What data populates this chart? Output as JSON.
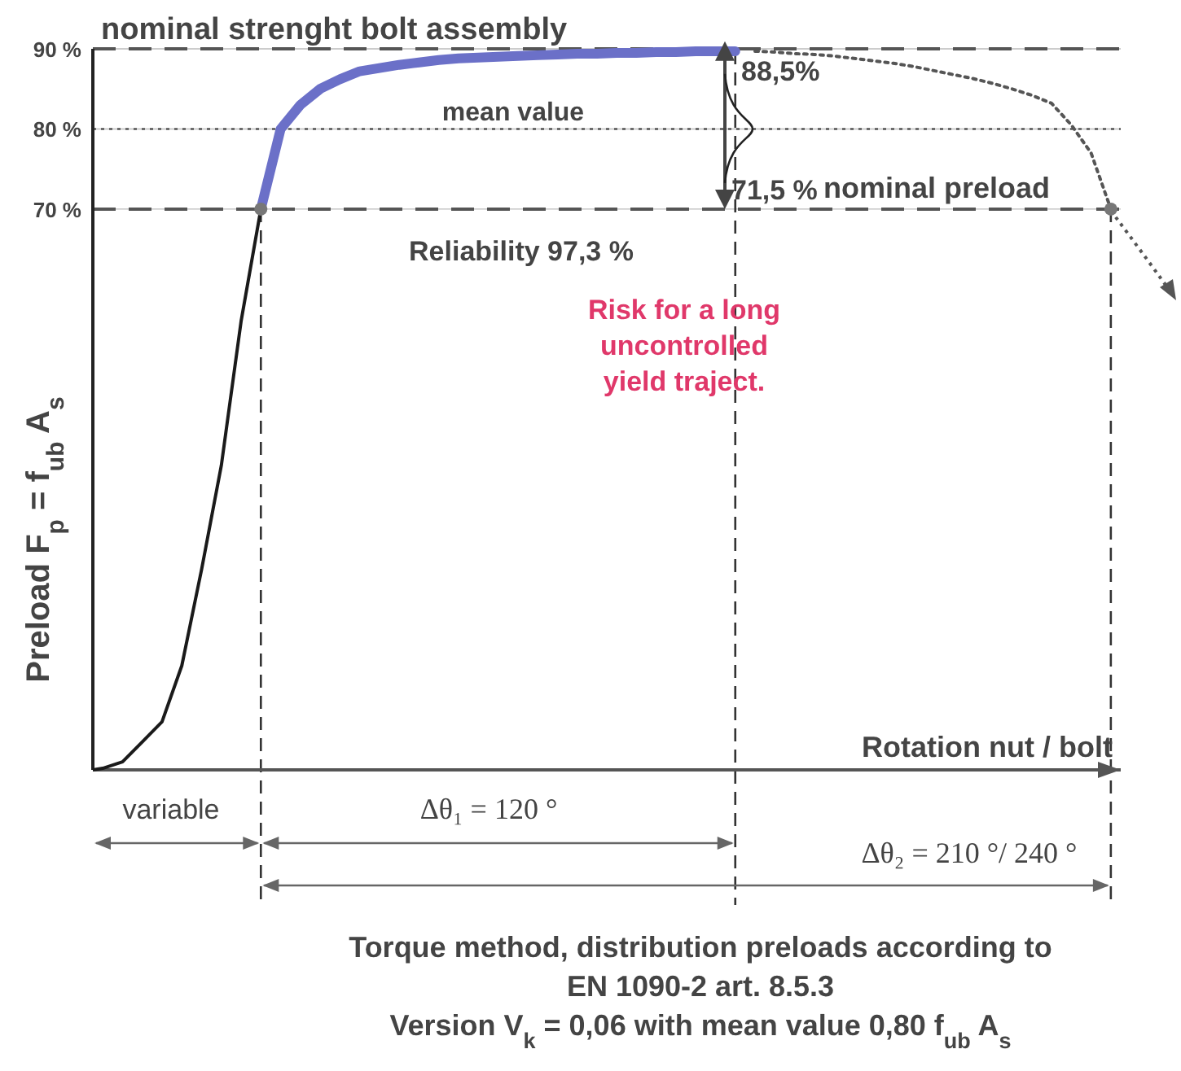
{
  "chart_data": {
    "type": "line",
    "title": "Torque method, distribution preloads according to EN 1090-2 art. 8.5.3",
    "subtitle": "Version V$_{k}$ = 0,06 with mean value 0,80 f$_{ub}$ A$_{s}$",
    "xlabel": "Rotation nut / bolt",
    "ylabel": "Preload F$_{p}$ = f$_{ub}$ A$_{s}$",
    "categories": [
      null,
      null,
      null,
      null,
      null,
      null,
      null,
      null,
      null,
      null,
      null,
      null,
      null,
      null,
      null,
      null,
      null,
      null,
      null,
      null,
      null,
      null,
      null,
      null,
      null,
      null,
      null,
      null,
      null,
      null,
      null,
      null,
      null,
      null,
      null,
      null,
      null,
      null,
      null,
      null,
      null,
      null,
      null,
      null,
      null,
      null,
      null,
      null,
      null,
      null,
      null,
      null
    ],
    "series": [
      {
        "color": "#1a1a1a",
        "line_style": "solid",
        "values": [
          0.2,
          1,
          3.5,
          6,
          13,
          25,
          38,
          56,
          70,
          null,
          null,
          null,
          null,
          null,
          null,
          null,
          null,
          null,
          null,
          null,
          null,
          null,
          null,
          null,
          null,
          null,
          null,
          null,
          null,
          null,
          null,
          null,
          null,
          null,
          null,
          null,
          null,
          null,
          null,
          null,
          null,
          null,
          null,
          null,
          null,
          null,
          null,
          null,
          null,
          null,
          null,
          null
        ]
      },
      {
        "color": "#6b70c8",
        "line_style": "solid",
        "values": [
          null,
          null,
          null,
          null,
          null,
          null,
          null,
          null,
          70,
          80,
          83,
          85,
          86.2,
          87.2,
          87.6,
          88,
          88.3,
          88.6,
          88.8,
          88.9,
          89,
          89.1,
          89.2,
          89.3,
          89.4,
          89.4,
          89.5,
          89.5,
          89.6,
          89.6,
          89.7,
          89.7,
          89.7,
          null,
          null,
          null,
          null,
          null,
          null,
          null,
          null,
          null,
          null,
          null,
          null,
          null,
          null,
          null,
          null,
          null,
          null,
          null
        ]
      },
      {
        "color": "#555555",
        "line_style": "dotted",
        "values": [
          null,
          null,
          null,
          null,
          null,
          null,
          null,
          null,
          null,
          null,
          null,
          null,
          null,
          null,
          null,
          null,
          null,
          null,
          null,
          null,
          null,
          null,
          null,
          null,
          null,
          null,
          null,
          null,
          null,
          null,
          null,
          null,
          null,
          89.7,
          89.6,
          89.4,
          89.3,
          89.1,
          88.8,
          88.5,
          88.2,
          87.8,
          87.3,
          86.8,
          86.3,
          85.7,
          85,
          84.2,
          83.2,
          80.5,
          77,
          70
        ]
      },
      {
        "type": "scatter",
        "color": "#777777",
        "marker": "circle",
        "values": [
          null,
          null,
          null,
          null,
          null,
          null,
          null,
          null,
          70,
          null,
          null,
          null,
          null,
          null,
          null,
          null,
          null,
          null,
          null,
          null,
          null,
          null,
          null,
          null,
          null,
          null,
          null,
          null,
          null,
          null,
          null,
          null,
          null,
          null,
          null,
          null,
          null,
          null,
          null,
          null,
          null,
          null,
          null,
          null,
          null,
          null,
          null,
          null,
          null,
          null,
          null,
          70
        ]
      }
    ],
    "ylim": [
      0,
      90
    ],
    "yticks": [
      {
        "value": 90,
        "label": "90 %"
      },
      {
        "value": 80,
        "label": "80 %"
      },
      {
        "value": 70,
        "label": "70 %"
      }
    ],
    "tick_labels": "y",
    "grid": true,
    "ref_lines": [
      {
        "axis": "y",
        "value": 90,
        "label": "nominal strenght bolt assembly",
        "line_style": "dashed",
        "color": "#555555"
      },
      {
        "axis": "y",
        "value": 80,
        "label": "mean value",
        "line_style": "dotted",
        "color": "#333333"
      },
      {
        "axis": "y",
        "value": 70,
        "label": "nominal preload",
        "line_style": "dashed",
        "color": "#555555"
      }
    ],
    "annotations": [
      {
        "text": "88,5%",
        "y": 88.5
      },
      "71,5 %",
      "Reliability 97,3 %",
      "Risk for a long uncontrolled yield traject.",
      "variable",
      "Δθ₁ = 120 °",
      "Δθ₂ = 210 °/ 240 °"
    ]
  }
}
